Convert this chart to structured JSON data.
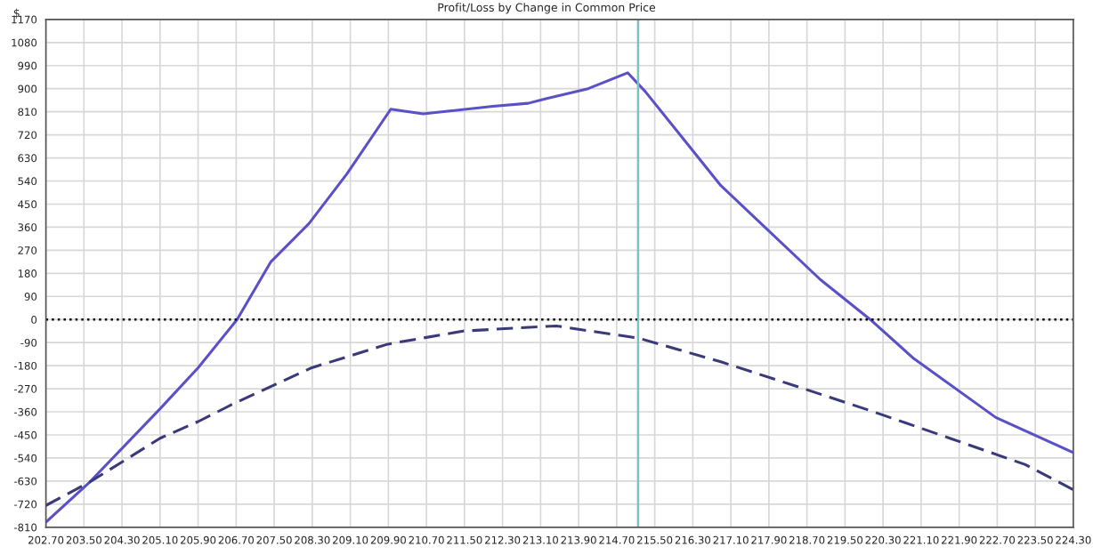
{
  "chart_data": {
    "type": "line",
    "title": "Profit/Loss by Change in Common Price",
    "ylabel": "$",
    "series": [
      {
        "color": "#5a50c8",
        "line_style": "solid",
        "x": [
          202.7,
          203.62,
          205.1,
          205.9,
          206.72,
          207.43,
          208.23,
          209.03,
          209.95,
          210.63,
          212.1,
          212.84,
          213.21,
          214.1,
          214.93,
          215.3,
          216.89,
          218.98,
          220.03,
          220.95,
          222.67,
          224.3
        ],
        "values": [
          -790,
          -634,
          -348,
          -188,
          0,
          225,
          374,
          568,
          820,
          802,
          831,
          843,
          861,
          900,
          962,
          889,
          522,
          156,
          0,
          -153,
          -382,
          -519
        ]
      },
      {
        "color": "#3a3a7a",
        "line_style": "dashed",
        "x": [
          202.7,
          203.62,
          205.1,
          205.9,
          206.68,
          208.29,
          209.89,
          211.47,
          213.21,
          213.43,
          215.17,
          216.89,
          218.49,
          220.09,
          221.69,
          223.28,
          224.3
        ],
        "values": [
          -725,
          -634,
          -463,
          -398,
          -325,
          -188,
          -96,
          -45,
          -27,
          -25,
          -73,
          -165,
          -261,
          -359,
          -462,
          -565,
          -664
        ]
      }
    ],
    "ref_lines": [
      {
        "axis": "y",
        "value": 0,
        "color": "#000000",
        "line_style": "dotted"
      },
      {
        "axis": "x",
        "value": 215.15,
        "color": "#7fbfbf",
        "line_style": "solid"
      }
    ],
    "xlim": [
      202.7,
      224.3
    ],
    "ylim": [
      -810,
      1170
    ],
    "xticks": [
      {
        "value": 202.7,
        "label": "202.70"
      },
      {
        "value": 203.5,
        "label": "203.50"
      },
      {
        "value": 204.3,
        "label": "204.30"
      },
      {
        "value": 205.1,
        "label": "205.10"
      },
      {
        "value": 205.9,
        "label": "205.90"
      },
      {
        "value": 206.7,
        "label": "206.70"
      },
      {
        "value": 207.5,
        "label": "207.50"
      },
      {
        "value": 208.3,
        "label": "208.30"
      },
      {
        "value": 209.1,
        "label": "209.10"
      },
      {
        "value": 209.9,
        "label": "209.90"
      },
      {
        "value": 210.7,
        "label": "210.70"
      },
      {
        "value": 211.5,
        "label": "211.50"
      },
      {
        "value": 212.3,
        "label": "212.30"
      },
      {
        "value": 213.1,
        "label": "213.10"
      },
      {
        "value": 213.9,
        "label": "213.90"
      },
      {
        "value": 214.7,
        "label": "214.70"
      },
      {
        "value": 215.5,
        "label": "215.50"
      },
      {
        "value": 216.3,
        "label": "216.30"
      },
      {
        "value": 217.1,
        "label": "217.10"
      },
      {
        "value": 217.9,
        "label": "217.90"
      },
      {
        "value": 218.7,
        "label": "218.70"
      },
      {
        "value": 219.5,
        "label": "219.50"
      },
      {
        "value": 220.3,
        "label": "220.30"
      },
      {
        "value": 221.1,
        "label": "221.10"
      },
      {
        "value": 221.9,
        "label": "221.90"
      },
      {
        "value": 222.7,
        "label": "222.70"
      },
      {
        "value": 223.5,
        "label": "223.50"
      },
      {
        "value": 224.3,
        "label": "224.30"
      }
    ],
    "yticks": [
      -810,
      -720,
      -630,
      -540,
      -450,
      -360,
      -270,
      -180,
      -90,
      0,
      90,
      180,
      270,
      360,
      450,
      540,
      630,
      720,
      810,
      900,
      990,
      1080,
      1170
    ],
    "grid": true
  }
}
